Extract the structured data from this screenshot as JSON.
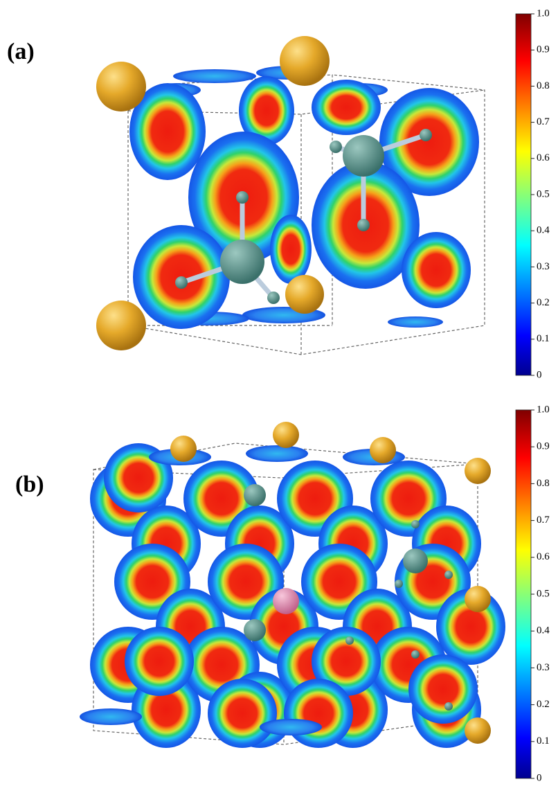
{
  "panels": [
    {
      "label": "(a)",
      "colorbar": {
        "lim": [
          0,
          1
        ],
        "ticks": [
          0,
          0.1,
          0.2,
          0.3,
          0.4,
          0.5,
          0.6,
          0.7,
          0.8,
          0.9,
          {
            "value": 1,
            "label": "1.0"
          }
        ]
      }
    },
    {
      "label": "(b)",
      "colorbar": {
        "lim": [
          0,
          1
        ],
        "ticks": [
          0,
          0.1,
          0.2,
          0.3,
          0.4,
          0.5,
          0.6,
          0.7,
          0.8,
          0.9,
          {
            "value": 1,
            "label": "1.0"
          }
        ]
      }
    }
  ]
}
